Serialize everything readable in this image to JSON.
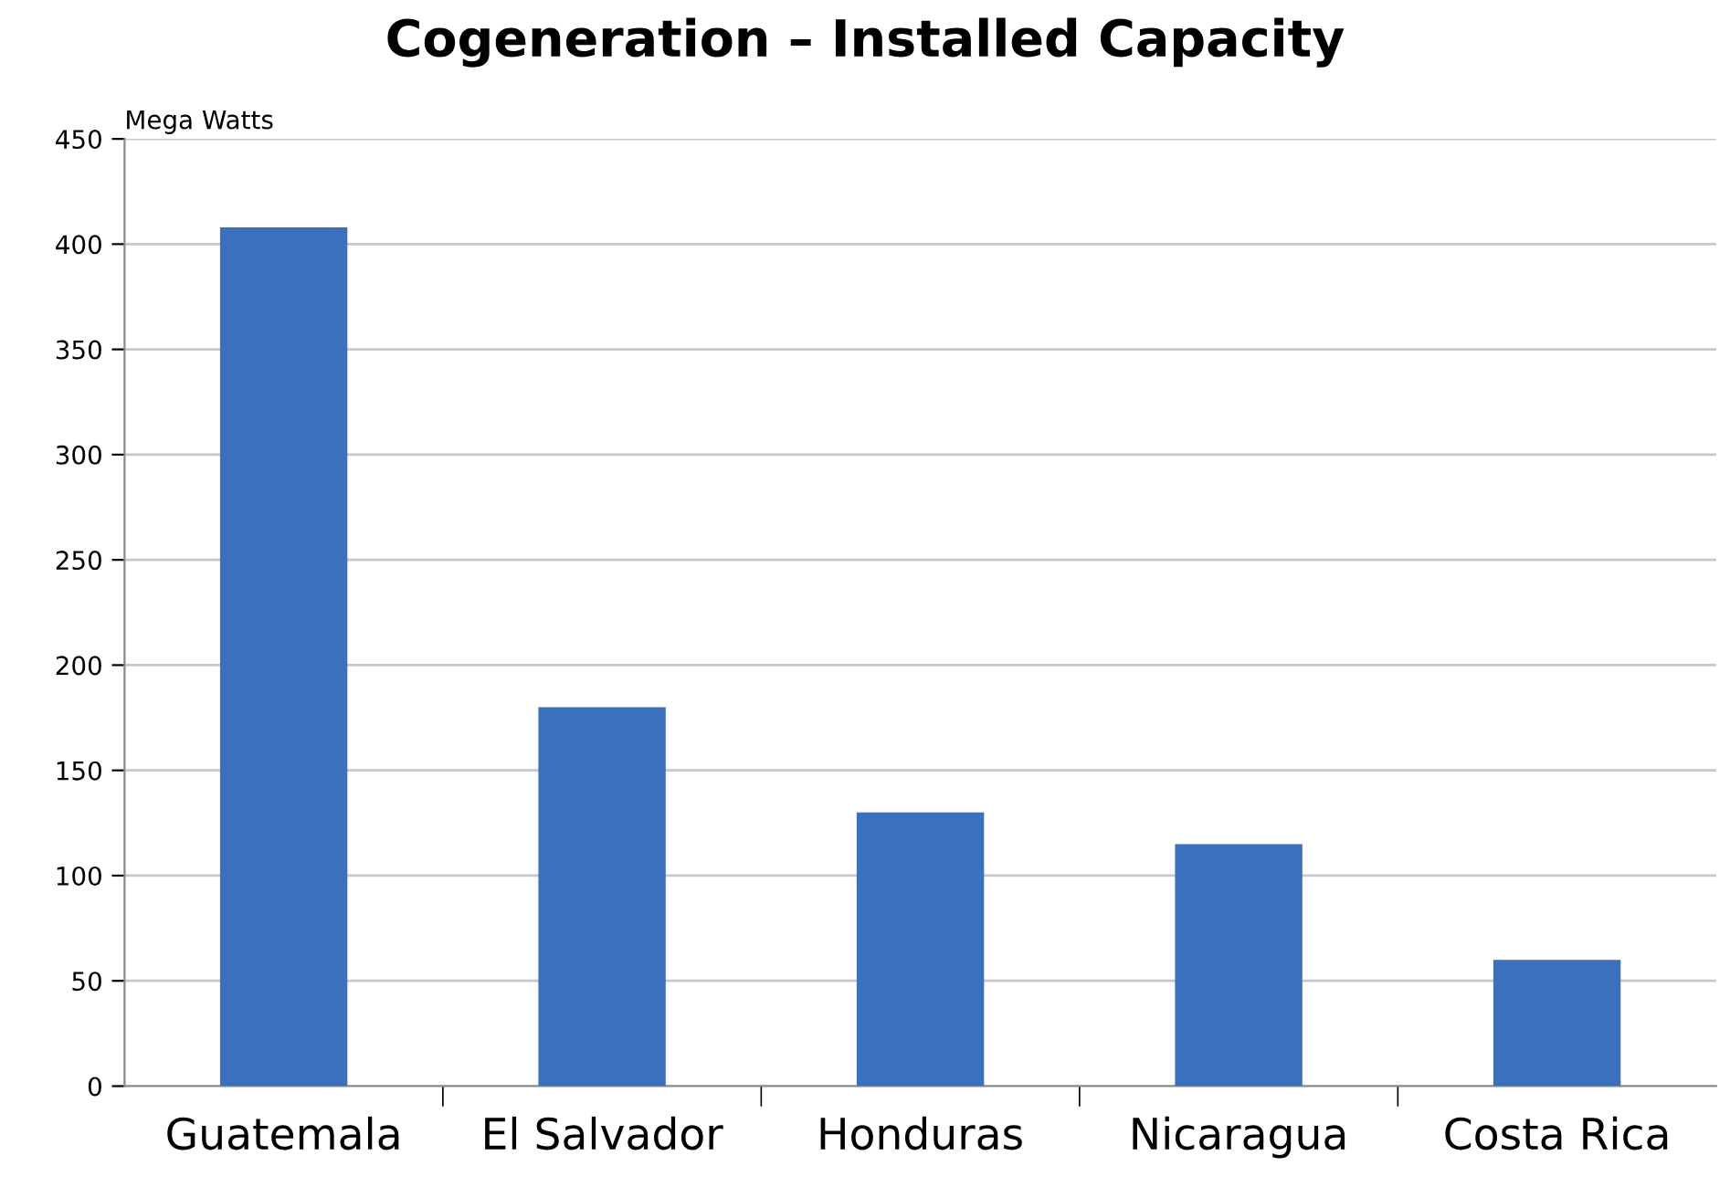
{
  "chart_data": {
    "type": "bar",
    "title": "Cogeneration – Installed Capacity",
    "ylabel": "Mega Watts",
    "categories": [
      "Guatemala",
      "El Salvador",
      "Honduras",
      "Nicaragua",
      "Costa Rica"
    ],
    "values": [
      408,
      180,
      130,
      115,
      60
    ],
    "color": "#3a70bd",
    "ylim": [
      0,
      450
    ],
    "yticks": [
      0,
      50,
      100,
      150,
      200,
      250,
      300,
      350,
      400,
      450
    ],
    "grid": "y"
  }
}
